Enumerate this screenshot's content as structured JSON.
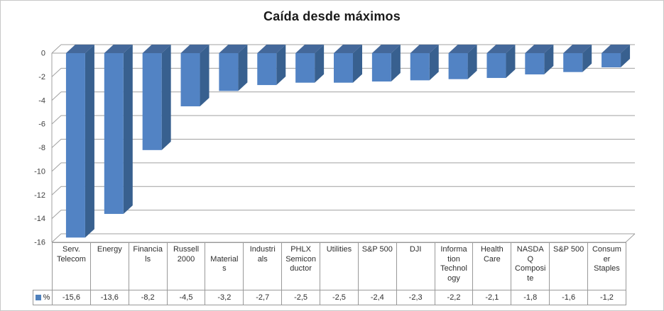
{
  "chart_data": {
    "type": "bar",
    "style": "3d-column",
    "title": "Caída desde máximos",
    "legend_label": "%",
    "legend_position": "bottom-left-table",
    "grid": true,
    "ylim": [
      -16,
      0
    ],
    "y_ticks": [
      0,
      -2,
      -4,
      -6,
      -8,
      -10,
      -12,
      -14,
      -16
    ],
    "y_tick_labels": [
      "0",
      "-2",
      "-4",
      "-6",
      "-8",
      "-10",
      "-12",
      "-14",
      "-16"
    ],
    "categories": [
      "Serv. Telecom",
      "Energy",
      "Financials",
      "Russell 2000",
      "Materials",
      "Industrials",
      "PHLX Semiconductor",
      "Utilities",
      "S&P 500",
      "DJI",
      "Information Technology",
      "Health Care",
      "NASDAQ Composite",
      "S&P 500",
      "Consumer Staples"
    ],
    "category_lines": [
      [
        "Serv.",
        "Telecom"
      ],
      [
        "Energy"
      ],
      [
        "Financia",
        "ls"
      ],
      [
        "Russell",
        "2000"
      ],
      [
        "",
        "Material",
        "s"
      ],
      [
        "Industri",
        "als"
      ],
      [
        "PHLX",
        "Semicon",
        "ductor"
      ],
      [
        "Utilities"
      ],
      [
        "S&P 500"
      ],
      [
        "DJI"
      ],
      [
        "Informa",
        "tion",
        "Technol",
        "ogy"
      ],
      [
        "Health",
        "Care"
      ],
      [
        "NASDA",
        "Q",
        "Composi",
        "te"
      ],
      [
        "S&P 500"
      ],
      [
        "Consum",
        "er",
        "Staples"
      ]
    ],
    "values": [
      -15.6,
      -13.6,
      -8.2,
      -4.5,
      -3.2,
      -2.7,
      -2.5,
      -2.5,
      -2.4,
      -2.3,
      -2.2,
      -2.1,
      -1.8,
      -1.6,
      -1.2
    ],
    "value_labels": [
      "-15,6",
      "-13,6",
      "-8,2",
      "-4,5",
      "-3,2",
      "-2,7",
      "-2,5",
      "-2,5",
      "-2,4",
      "-2,3",
      "-2,2",
      "-2,1",
      "-1,8",
      "-1,6",
      "-1,2"
    ]
  },
  "colors": {
    "bar_front": "#5283C4",
    "bar_side": "#38608F",
    "bar_top": "#44689A",
    "gridline": "#A0A0A0",
    "axis_text": "#3F3F3F",
    "table_border": "#999999",
    "table_text": "#2E2E2E",
    "title_text": "#1A1A1A",
    "legend_swatch": "#4F81BD"
  }
}
